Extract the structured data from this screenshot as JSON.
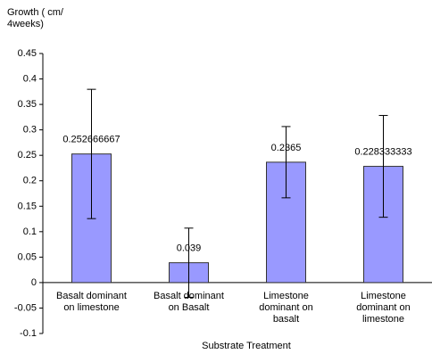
{
  "chart_data": {
    "type": "bar",
    "y_label": "Growth ( cm/\n4weeks)",
    "x_label": "Substrate Treatment",
    "categories": [
      "Basalt dominant\non limestone",
      "Basalt dominant\non Basalt",
      "Limestone\ndominant on\nbasalt",
      "Limestone\ndominant on\nlimestone"
    ],
    "values": [
      0.252666667,
      0.039,
      0.2365,
      0.228333333
    ],
    "errors": [
      0.127,
      0.068,
      0.07,
      0.1
    ],
    "color": "#9999ff",
    "ylim": [
      -0.1,
      0.45
    ],
    "yticks": [
      0.45,
      0.4,
      0.35,
      0.3,
      0.25,
      0.2,
      0.15,
      0.1,
      0.05,
      0,
      -0.05,
      -0.1
    ]
  }
}
